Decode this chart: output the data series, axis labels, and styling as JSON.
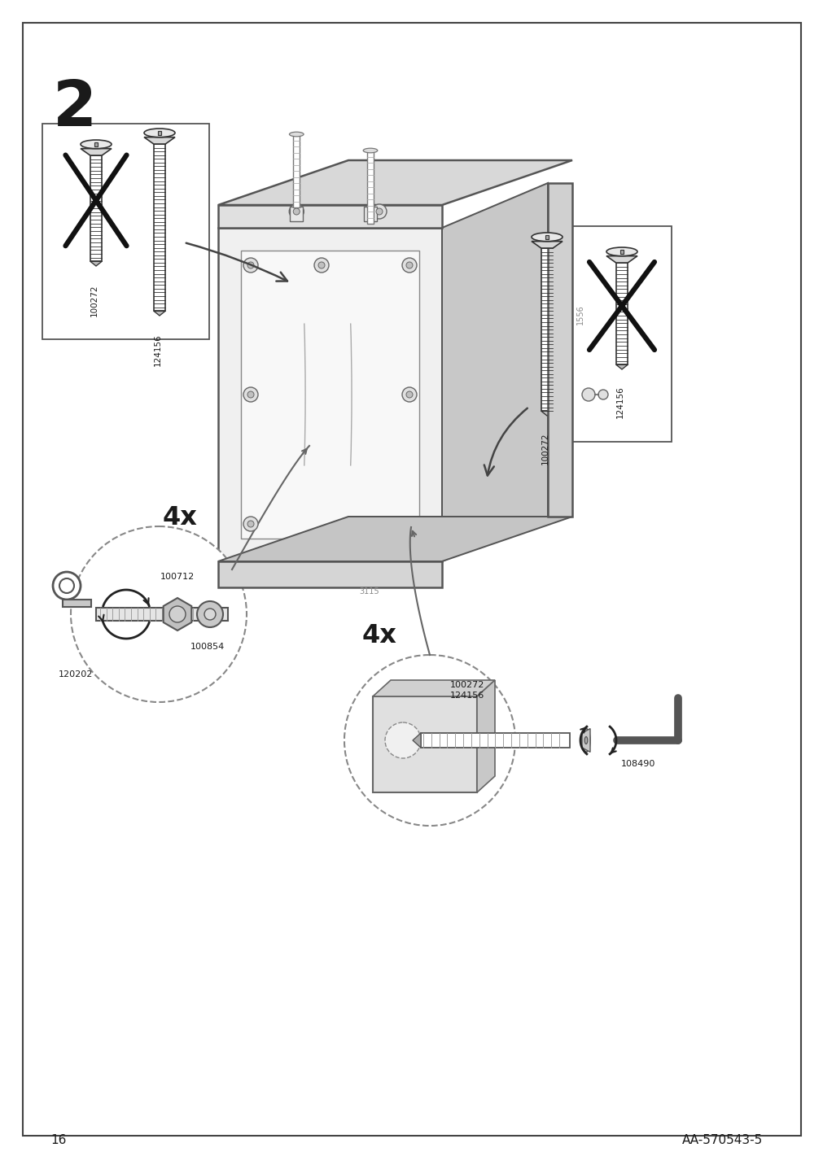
{
  "page_number": "16",
  "step_number": "2",
  "doc_id": "AA-570543-5",
  "bg_color": "#ffffff",
  "border_color": "#3a3a3a",
  "text_color": "#1a1a1a",
  "gray": "#888888",
  "dark": "#444444",
  "light_gray": "#cccccc",
  "part_ids_left": [
    "100272",
    "124156"
  ],
  "part_ids_right": [
    "100272",
    "124156"
  ],
  "part_bl": [
    "100712",
    "100854",
    "120202"
  ],
  "part_br": [
    "100272",
    "124156",
    "108490"
  ],
  "qty": [
    "4x",
    "4x"
  ]
}
